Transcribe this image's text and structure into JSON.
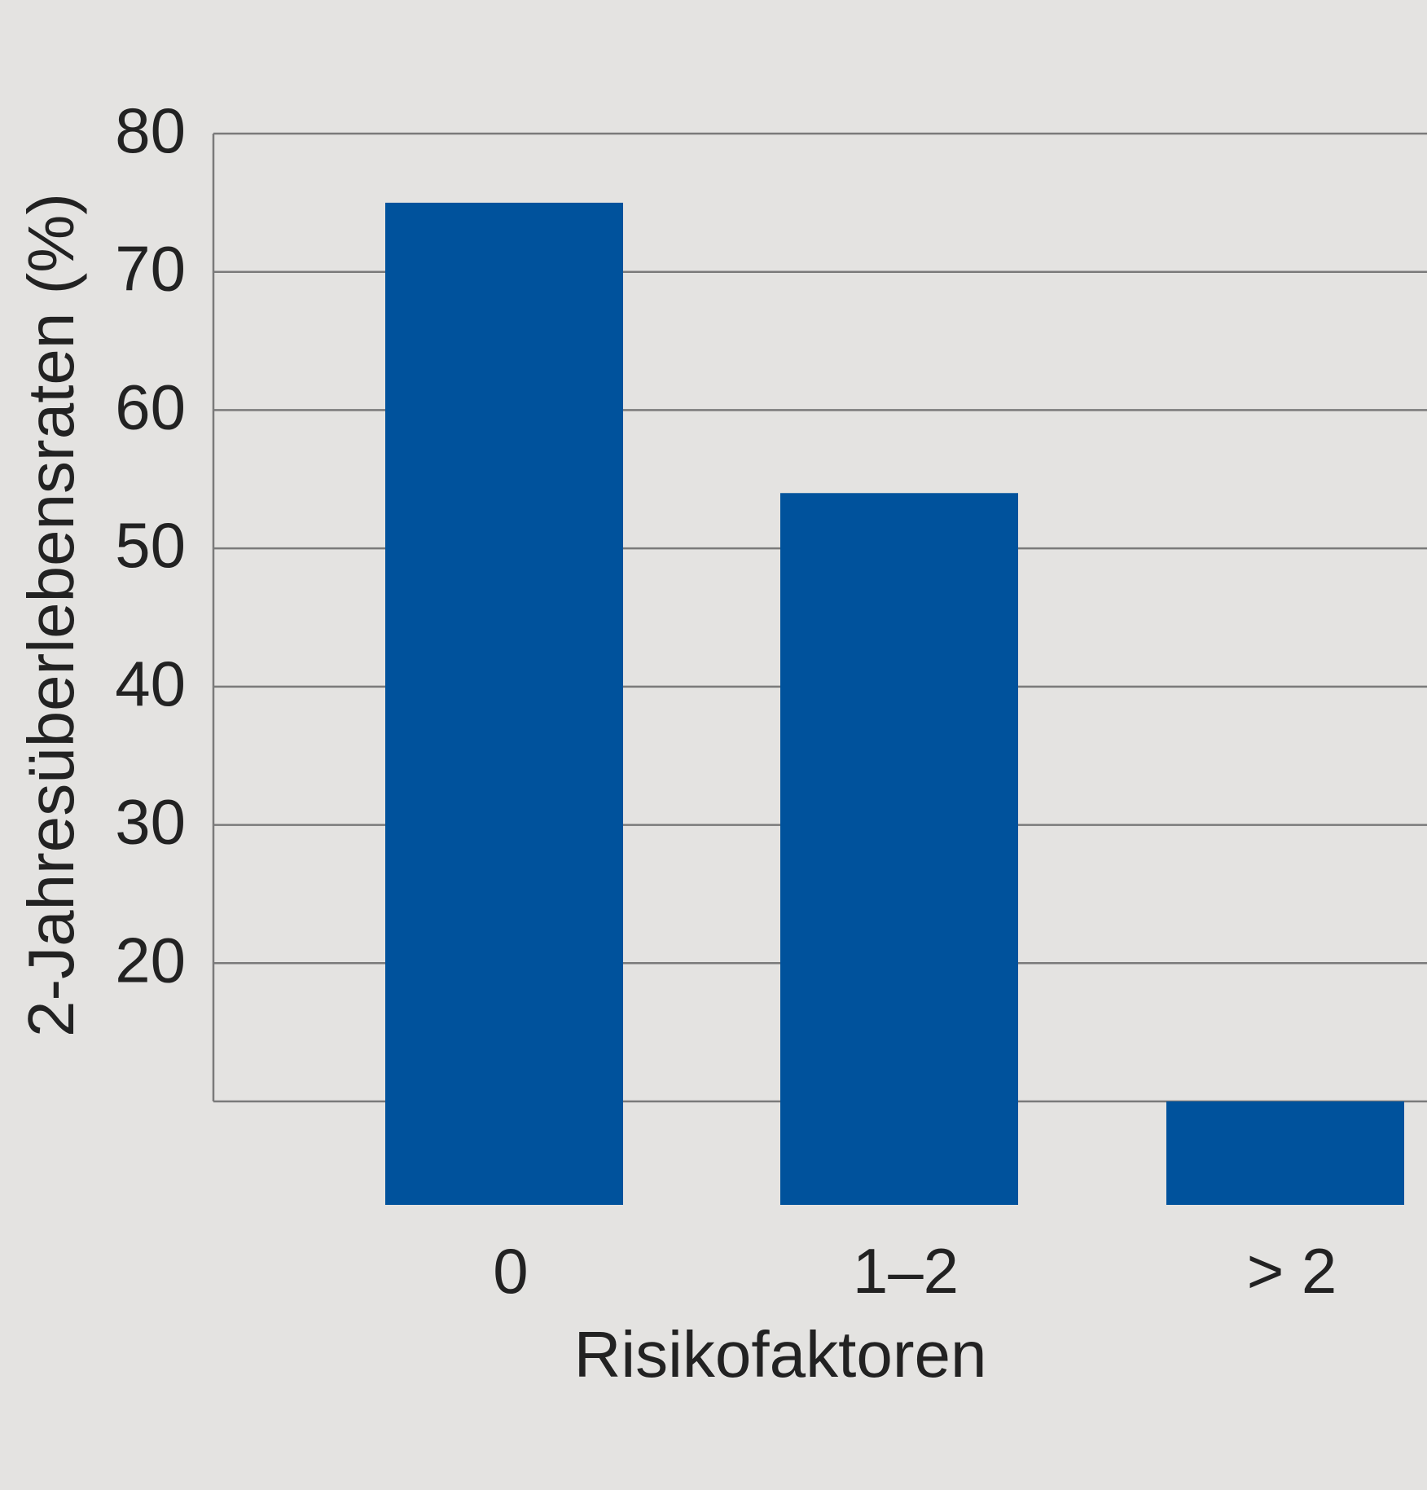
{
  "chart_data": {
    "type": "bar",
    "categories": [
      "0",
      "1–2",
      "> 2"
    ],
    "series": [
      {
        "values": [
          75,
          54,
          10
        ]
      }
    ],
    "ylabel": "2-Jahresüberlebensraten (%)",
    "xlabel": "Risikofaktoren",
    "ylim": [
      10,
      80
    ],
    "yticks": [
      20,
      30,
      40,
      50,
      60,
      70,
      80
    ],
    "grid": true,
    "legend": "none",
    "colors": {
      "bar": "#00529c",
      "grid": "#7a7a7a",
      "background": "#e4e3e1"
    }
  }
}
